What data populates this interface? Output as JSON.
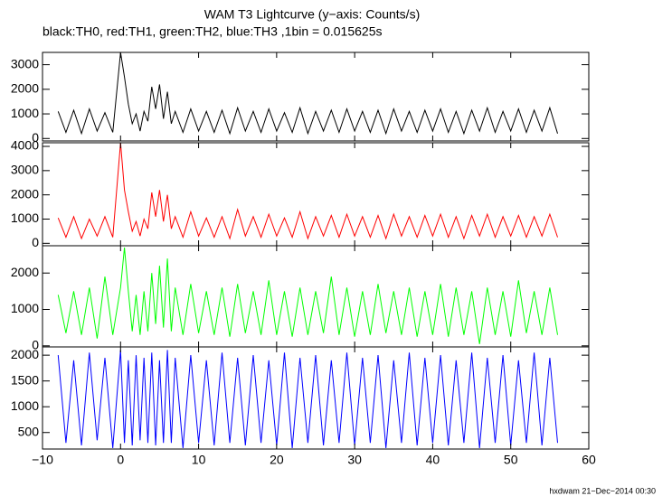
{
  "chart_data": [
    {
      "type": "line",
      "title": "WAM T3 Lightcurve (y−axis: Counts/s)",
      "subtitle": "black:TH0, red:TH1, green:TH2, blue:TH3 ,1bin = 0.015625s",
      "x": [
        -8,
        -7,
        -6,
        -5,
        -4,
        -3,
        -2,
        -1,
        0,
        0.5,
        1,
        1.5,
        2,
        2.5,
        3,
        3.5,
        4,
        4.5,
        5,
        5.5,
        6,
        6.5,
        7,
        8,
        9,
        10,
        11,
        12,
        13,
        14,
        15,
        16,
        17,
        18,
        19,
        20,
        21,
        22,
        23,
        24,
        25,
        26,
        27,
        28,
        29,
        30,
        31,
        32,
        33,
        34,
        35,
        36,
        37,
        38,
        39,
        40,
        41,
        42,
        43,
        44,
        45,
        46,
        47,
        48,
        49,
        50,
        51,
        52,
        53,
        54,
        55,
        56
      ],
      "series": [
        {
          "color": "#000000",
          "values": [
            1100,
            250,
            1150,
            200,
            1200,
            300,
            1050,
            250,
            3500,
            2500,
            1400,
            600,
            1000,
            300,
            1100,
            700,
            2100,
            1200,
            2200,
            800,
            1900,
            600,
            1100,
            250,
            1200,
            300,
            1100,
            250,
            1150,
            200,
            1250,
            300,
            1100,
            250,
            1200,
            300,
            1050,
            250,
            1250,
            200,
            1100,
            300,
            1150,
            250,
            1200,
            300,
            1100,
            250,
            1150,
            200,
            1200,
            300,
            1100,
            250,
            1150,
            300,
            1200,
            250,
            1100,
            200,
            1150,
            300,
            1250,
            250,
            1100,
            300,
            1200,
            250,
            1150,
            300,
            1250,
            200
          ]
        }
      ],
      "xlim": [
        -10,
        60
      ],
      "ylim": [
        -100,
        3500
      ],
      "yticks": [
        0,
        1000,
        2000,
        3000
      ],
      "xticks": [
        -10,
        0,
        10,
        20,
        30,
        40,
        50,
        60
      ]
    },
    {
      "type": "line",
      "x": [
        -8,
        -7,
        -6,
        -5,
        -4,
        -3,
        -2,
        -1,
        0,
        0.5,
        1,
        1.5,
        2,
        2.5,
        3,
        3.5,
        4,
        4.5,
        5,
        5.5,
        6,
        6.5,
        7,
        8,
        9,
        10,
        11,
        12,
        13,
        14,
        15,
        16,
        17,
        18,
        19,
        20,
        21,
        22,
        23,
        24,
        25,
        26,
        27,
        28,
        29,
        30,
        31,
        32,
        33,
        34,
        35,
        36,
        37,
        38,
        39,
        40,
        41,
        42,
        43,
        44,
        45,
        46,
        47,
        48,
        49,
        50,
        51,
        52,
        53,
        54,
        55,
        56
      ],
      "series": [
        {
          "color": "#ff0000",
          "values": [
            1050,
            250,
            1100,
            200,
            1000,
            300,
            1100,
            250,
            4150,
            2200,
            1300,
            500,
            900,
            300,
            1000,
            600,
            2100,
            1100,
            2200,
            900,
            2000,
            600,
            1100,
            250,
            1300,
            300,
            1050,
            250,
            1100,
            200,
            1400,
            300,
            1100,
            250,
            1200,
            300,
            1050,
            250,
            1300,
            200,
            1100,
            300,
            1150,
            250,
            1200,
            300,
            1100,
            250,
            1150,
            200,
            1200,
            300,
            1100,
            250,
            1150,
            300,
            1200,
            250,
            1100,
            200,
            1150,
            300,
            1200,
            250,
            1100,
            300,
            1150,
            250,
            1100,
            300,
            1200,
            250
          ]
        }
      ],
      "xlim": [
        -10,
        60
      ],
      "ylim": [
        -100,
        4150
      ],
      "yticks": [
        0,
        1000,
        2000,
        3000,
        4000
      ],
      "xticks": [
        -10,
        0,
        10,
        20,
        30,
        40,
        50,
        60
      ]
    },
    {
      "type": "line",
      "x": [
        -8,
        -7,
        -6,
        -5,
        -4,
        -3,
        -2,
        -1,
        0,
        0.5,
        1,
        1.5,
        2,
        2.5,
        3,
        3.5,
        4,
        4.5,
        5,
        5.5,
        6,
        6.5,
        7,
        8,
        9,
        10,
        11,
        12,
        13,
        14,
        15,
        16,
        17,
        18,
        19,
        20,
        21,
        22,
        23,
        24,
        25,
        26,
        27,
        28,
        29,
        30,
        31,
        32,
        33,
        34,
        35,
        36,
        37,
        38,
        39,
        40,
        41,
        42,
        43,
        44,
        45,
        46,
        47,
        48,
        49,
        50,
        51,
        52,
        53,
        54,
        55,
        56
      ],
      "series": [
        {
          "color": "#00ff00",
          "values": [
            1400,
            350,
            1500,
            300,
            1600,
            200,
            1900,
            300,
            1600,
            2700,
            1500,
            400,
            1400,
            300,
            1500,
            400,
            2000,
            600,
            2200,
            500,
            2400,
            400,
            1600,
            300,
            1700,
            350,
            1500,
            300,
            1600,
            250,
            1700,
            350,
            1500,
            300,
            1800,
            300,
            1500,
            250,
            1600,
            300,
            1500,
            350,
            1900,
            300,
            1600,
            250,
            1500,
            300,
            1700,
            350,
            1500,
            300,
            1600,
            250,
            1500,
            300,
            1700,
            250,
            1600,
            300,
            1500,
            50,
            1600,
            300,
            1500,
            250,
            1800,
            350,
            1500,
            300,
            1600,
            300
          ]
        }
      ],
      "xlim": [
        -10,
        60
      ],
      "ylim": [
        -30,
        2750
      ],
      "yticks": [
        0,
        1000,
        2000
      ],
      "xticks": [
        -10,
        0,
        10,
        20,
        30,
        40,
        50,
        60
      ]
    },
    {
      "type": "line",
      "x": [
        -8,
        -7,
        -6,
        -5,
        -4,
        -3,
        -2,
        -1,
        0,
        0.5,
        1,
        1.5,
        2,
        2.5,
        3,
        3.5,
        4,
        4.5,
        5,
        5.5,
        6,
        6.5,
        7,
        8,
        9,
        10,
        11,
        12,
        13,
        14,
        15,
        16,
        17,
        18,
        19,
        20,
        21,
        22,
        23,
        24,
        25,
        26,
        27,
        28,
        29,
        30,
        31,
        32,
        33,
        34,
        35,
        36,
        37,
        38,
        39,
        40,
        41,
        42,
        43,
        44,
        45,
        46,
        47,
        48,
        49,
        50,
        51,
        52,
        53,
        54,
        55,
        56
      ],
      "series": [
        {
          "color": "#0000ff",
          "values": [
            2000,
            300,
            1900,
            250,
            2050,
            350,
            1950,
            200,
            2100,
            300,
            1900,
            250,
            2000,
            350,
            1950,
            300,
            2050,
            250,
            1900,
            300,
            2100,
            300,
            1950,
            200,
            2000,
            300,
            1900,
            250,
            2050,
            300,
            1950,
            250,
            2000,
            300,
            1900,
            250,
            2050,
            200,
            1950,
            300,
            2000,
            250,
            1900,
            300,
            2050,
            250,
            1950,
            300,
            2000,
            200,
            1900,
            300,
            2050,
            250,
            1950,
            300,
            2000,
            250,
            1900,
            300,
            2050,
            200,
            1950,
            300,
            2000,
            250,
            1900,
            300,
            2050,
            250,
            1950,
            300
          ]
        }
      ],
      "xlim": [
        -10,
        60
      ],
      "ylim": [
        180,
        2160
      ],
      "yticks": [
        500,
        1000,
        1500,
        2000
      ],
      "xticks": [
        {
          "value": -10,
          "label": "−10"
        },
        0,
        10,
        20,
        30,
        40,
        50,
        60
      ]
    }
  ],
  "footer": "hxdwam 21−Dec−2014 00:30"
}
